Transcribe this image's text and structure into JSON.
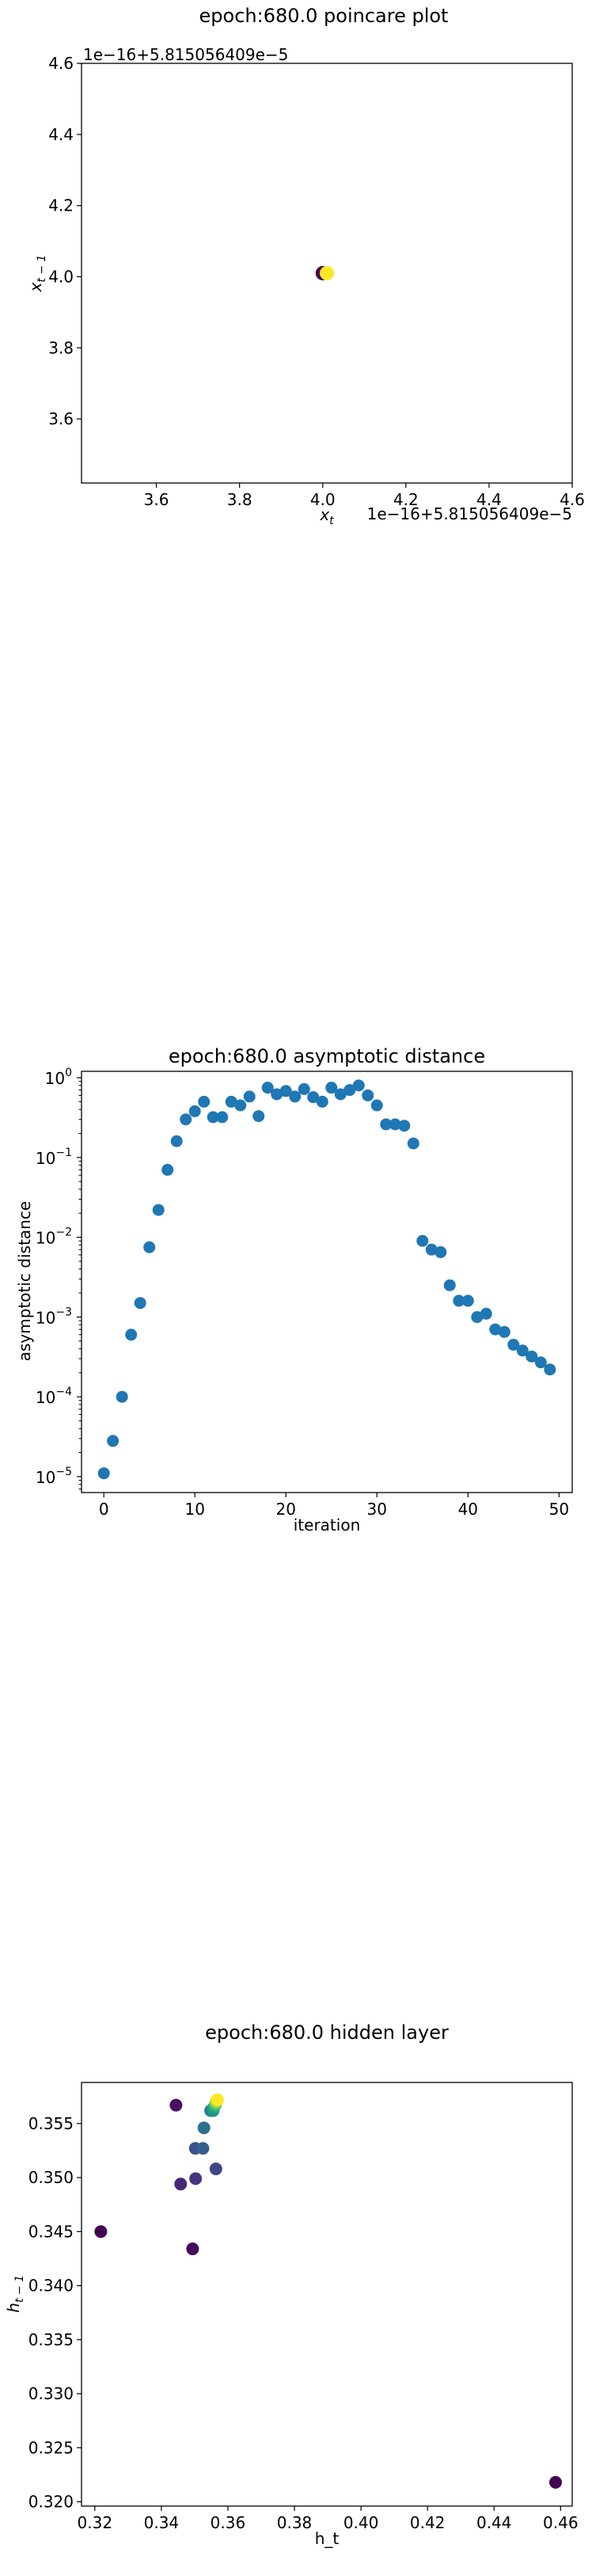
{
  "chart_data": [
    {
      "type": "scatter",
      "title": "epoch:680.0 poincare plot",
      "xlabel": "x_t",
      "ylabel": "x_{t-1}",
      "x_offset_label": "1e−16+5.815056409e−5",
      "y_offset_label": "1e−16+5.815056409e−5",
      "xlim": [
        3.42,
        4.6
      ],
      "ylim": [
        3.42,
        4.6
      ],
      "xticks": [
        3.6,
        3.8,
        4.0,
        4.2,
        4.4,
        4.6
      ],
      "yticks": [
        3.6,
        3.8,
        4.0,
        4.2,
        4.4,
        4.6
      ],
      "xtick_labels": [
        "3.6",
        "3.8",
        "4.0",
        "4.2",
        "4.4",
        "4.6"
      ],
      "ytick_labels": [
        "3.6",
        "3.8",
        "4.0",
        "4.2",
        "4.4",
        "4.6"
      ],
      "points": [
        {
          "x": 4.0,
          "y": 4.01,
          "color": "#440154"
        },
        {
          "x": 4.01,
          "y": 4.01,
          "color": "#fde725"
        }
      ]
    },
    {
      "type": "scatter",
      "title": "epoch:680.0 asymptotic distance",
      "xlabel": "iteration",
      "ylabel": "asymptotic distance",
      "yscale": "log",
      "xlim": [
        -2.45,
        51.45
      ],
      "ylim_log10": [
        -5.2,
        0.08
      ],
      "xticks": [
        0,
        10,
        20,
        30,
        40,
        50
      ],
      "xtick_labels": [
        "0",
        "10",
        "20",
        "30",
        "40",
        "50"
      ],
      "ytick_exponents": [
        -5,
        -4,
        -3,
        -2,
        -1,
        0
      ],
      "ytick_labels": [
        "10",
        "10",
        "10",
        "10",
        "10",
        "10"
      ],
      "ytick_superscripts": [
        "−5",
        "−4",
        "−3",
        "−2",
        "−1",
        "0"
      ],
      "color": "#1f77b4",
      "x": [
        0,
        1,
        2,
        3,
        4,
        5,
        6,
        7,
        8,
        9,
        10,
        11,
        12,
        13,
        14,
        15,
        16,
        17,
        18,
        19,
        20,
        21,
        22,
        23,
        24,
        25,
        26,
        27,
        28,
        29,
        30,
        31,
        32,
        33,
        34,
        35,
        36,
        37,
        38,
        39,
        40,
        41,
        42,
        43,
        44,
        45,
        46,
        47,
        48,
        49
      ],
      "y": [
        1.1e-05,
        2.8e-05,
        0.0001,
        0.0006,
        0.0015,
        0.0075,
        0.022,
        0.07,
        0.16,
        0.3,
        0.38,
        0.5,
        0.32,
        0.32,
        0.5,
        0.45,
        0.58,
        0.33,
        0.75,
        0.62,
        0.68,
        0.58,
        0.72,
        0.57,
        0.5,
        0.75,
        0.62,
        0.7,
        0.8,
        0.6,
        0.45,
        0.26,
        0.26,
        0.25,
        0.15,
        0.009,
        0.007,
        0.0065,
        0.0025,
        0.0016,
        0.0016,
        0.001,
        0.0011,
        0.0007,
        0.00065,
        0.00045,
        0.00038,
        0.00032,
        0.00027,
        0.00022
      ]
    },
    {
      "type": "scatter",
      "title": "epoch:680.0 hidden layer",
      "xlabel": "h_t",
      "ylabel": "h_{t-1}",
      "xlim": [
        0.316,
        0.4635
      ],
      "ylim": [
        0.3196,
        0.3588
      ],
      "xticks": [
        0.32,
        0.34,
        0.36,
        0.38,
        0.4,
        0.42,
        0.44,
        0.46
      ],
      "xtick_labels": [
        "0.32",
        "0.34",
        "0.36",
        "0.38",
        "0.40",
        "0.42",
        "0.44",
        "0.46"
      ],
      "yticks": [
        0.32,
        0.325,
        0.33,
        0.335,
        0.34,
        0.345,
        0.35,
        0.355
      ],
      "ytick_labels": [
        "0.320",
        "0.325",
        "0.330",
        "0.335",
        "0.340",
        "0.345",
        "0.350",
        "0.355"
      ],
      "points": [
        {
          "x": 0.4585,
          "y": 0.3218,
          "color": "#440154"
        },
        {
          "x": 0.3218,
          "y": 0.345,
          "color": "#440154"
        },
        {
          "x": 0.3494,
          "y": 0.3434,
          "color": "#46085c"
        },
        {
          "x": 0.3444,
          "y": 0.3567,
          "color": "#471063"
        },
        {
          "x": 0.3458,
          "y": 0.3494,
          "color": "#482576"
        },
        {
          "x": 0.3503,
          "y": 0.3499,
          "color": "#453581"
        },
        {
          "x": 0.3564,
          "y": 0.3508,
          "color": "#414487"
        },
        {
          "x": 0.3502,
          "y": 0.3527,
          "color": "#3b528b"
        },
        {
          "x": 0.3525,
          "y": 0.3527,
          "color": "#34608d"
        },
        {
          "x": 0.3528,
          "y": 0.3546,
          "color": "#2d708e"
        },
        {
          "x": 0.3548,
          "y": 0.3562,
          "color": "#277f8e"
        },
        {
          "x": 0.3556,
          "y": 0.3562,
          "color": "#21918c"
        },
        {
          "x": 0.3558,
          "y": 0.3565,
          "color": "#1fa088"
        },
        {
          "x": 0.3562,
          "y": 0.3567,
          "color": "#35b779"
        },
        {
          "x": 0.3564,
          "y": 0.3569,
          "color": "#6ece58"
        },
        {
          "x": 0.3566,
          "y": 0.3571,
          "color": "#b5de2b"
        },
        {
          "x": 0.3569,
          "y": 0.3572,
          "color": "#fde725"
        }
      ]
    }
  ]
}
